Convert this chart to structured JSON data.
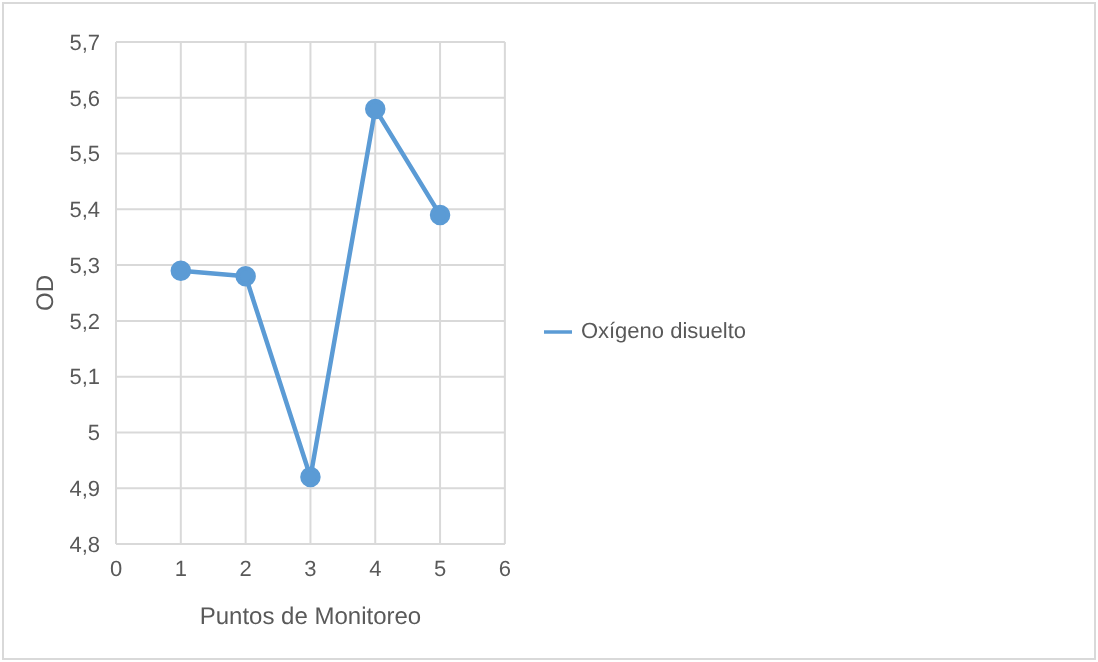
{
  "chart_data": {
    "type": "line",
    "xlabel": "Puntos de Monitoreo",
    "ylabel": "OD",
    "x": [
      1,
      2,
      3,
      4,
      5
    ],
    "series": [
      {
        "name": "Oxígeno disuelto",
        "color": "#5b9bd5",
        "values": [
          5.29,
          5.28,
          4.92,
          5.58,
          5.39
        ]
      }
    ],
    "xlim": [
      0,
      6
    ],
    "xticks": [
      0,
      1,
      2,
      3,
      4,
      5,
      6
    ],
    "ylim": [
      4.8,
      5.7
    ],
    "yticks": [
      {
        "value": 4.8,
        "label": "4,8"
      },
      {
        "value": 4.9,
        "label": "4,9"
      },
      {
        "value": 5,
        "label": "5"
      },
      {
        "value": 5.1,
        "label": "5,1"
      },
      {
        "value": 5.2,
        "label": "5,2"
      },
      {
        "value": 5.3,
        "label": "5,3"
      },
      {
        "value": 5.4,
        "label": "5,4"
      },
      {
        "value": 5.5,
        "label": "5,5"
      },
      {
        "value": 5.6,
        "label": "5,6"
      },
      {
        "value": 5.7,
        "label": "5,7"
      }
    ],
    "grid": true,
    "legend": "right",
    "marker": "circle",
    "line_style": "solid"
  }
}
